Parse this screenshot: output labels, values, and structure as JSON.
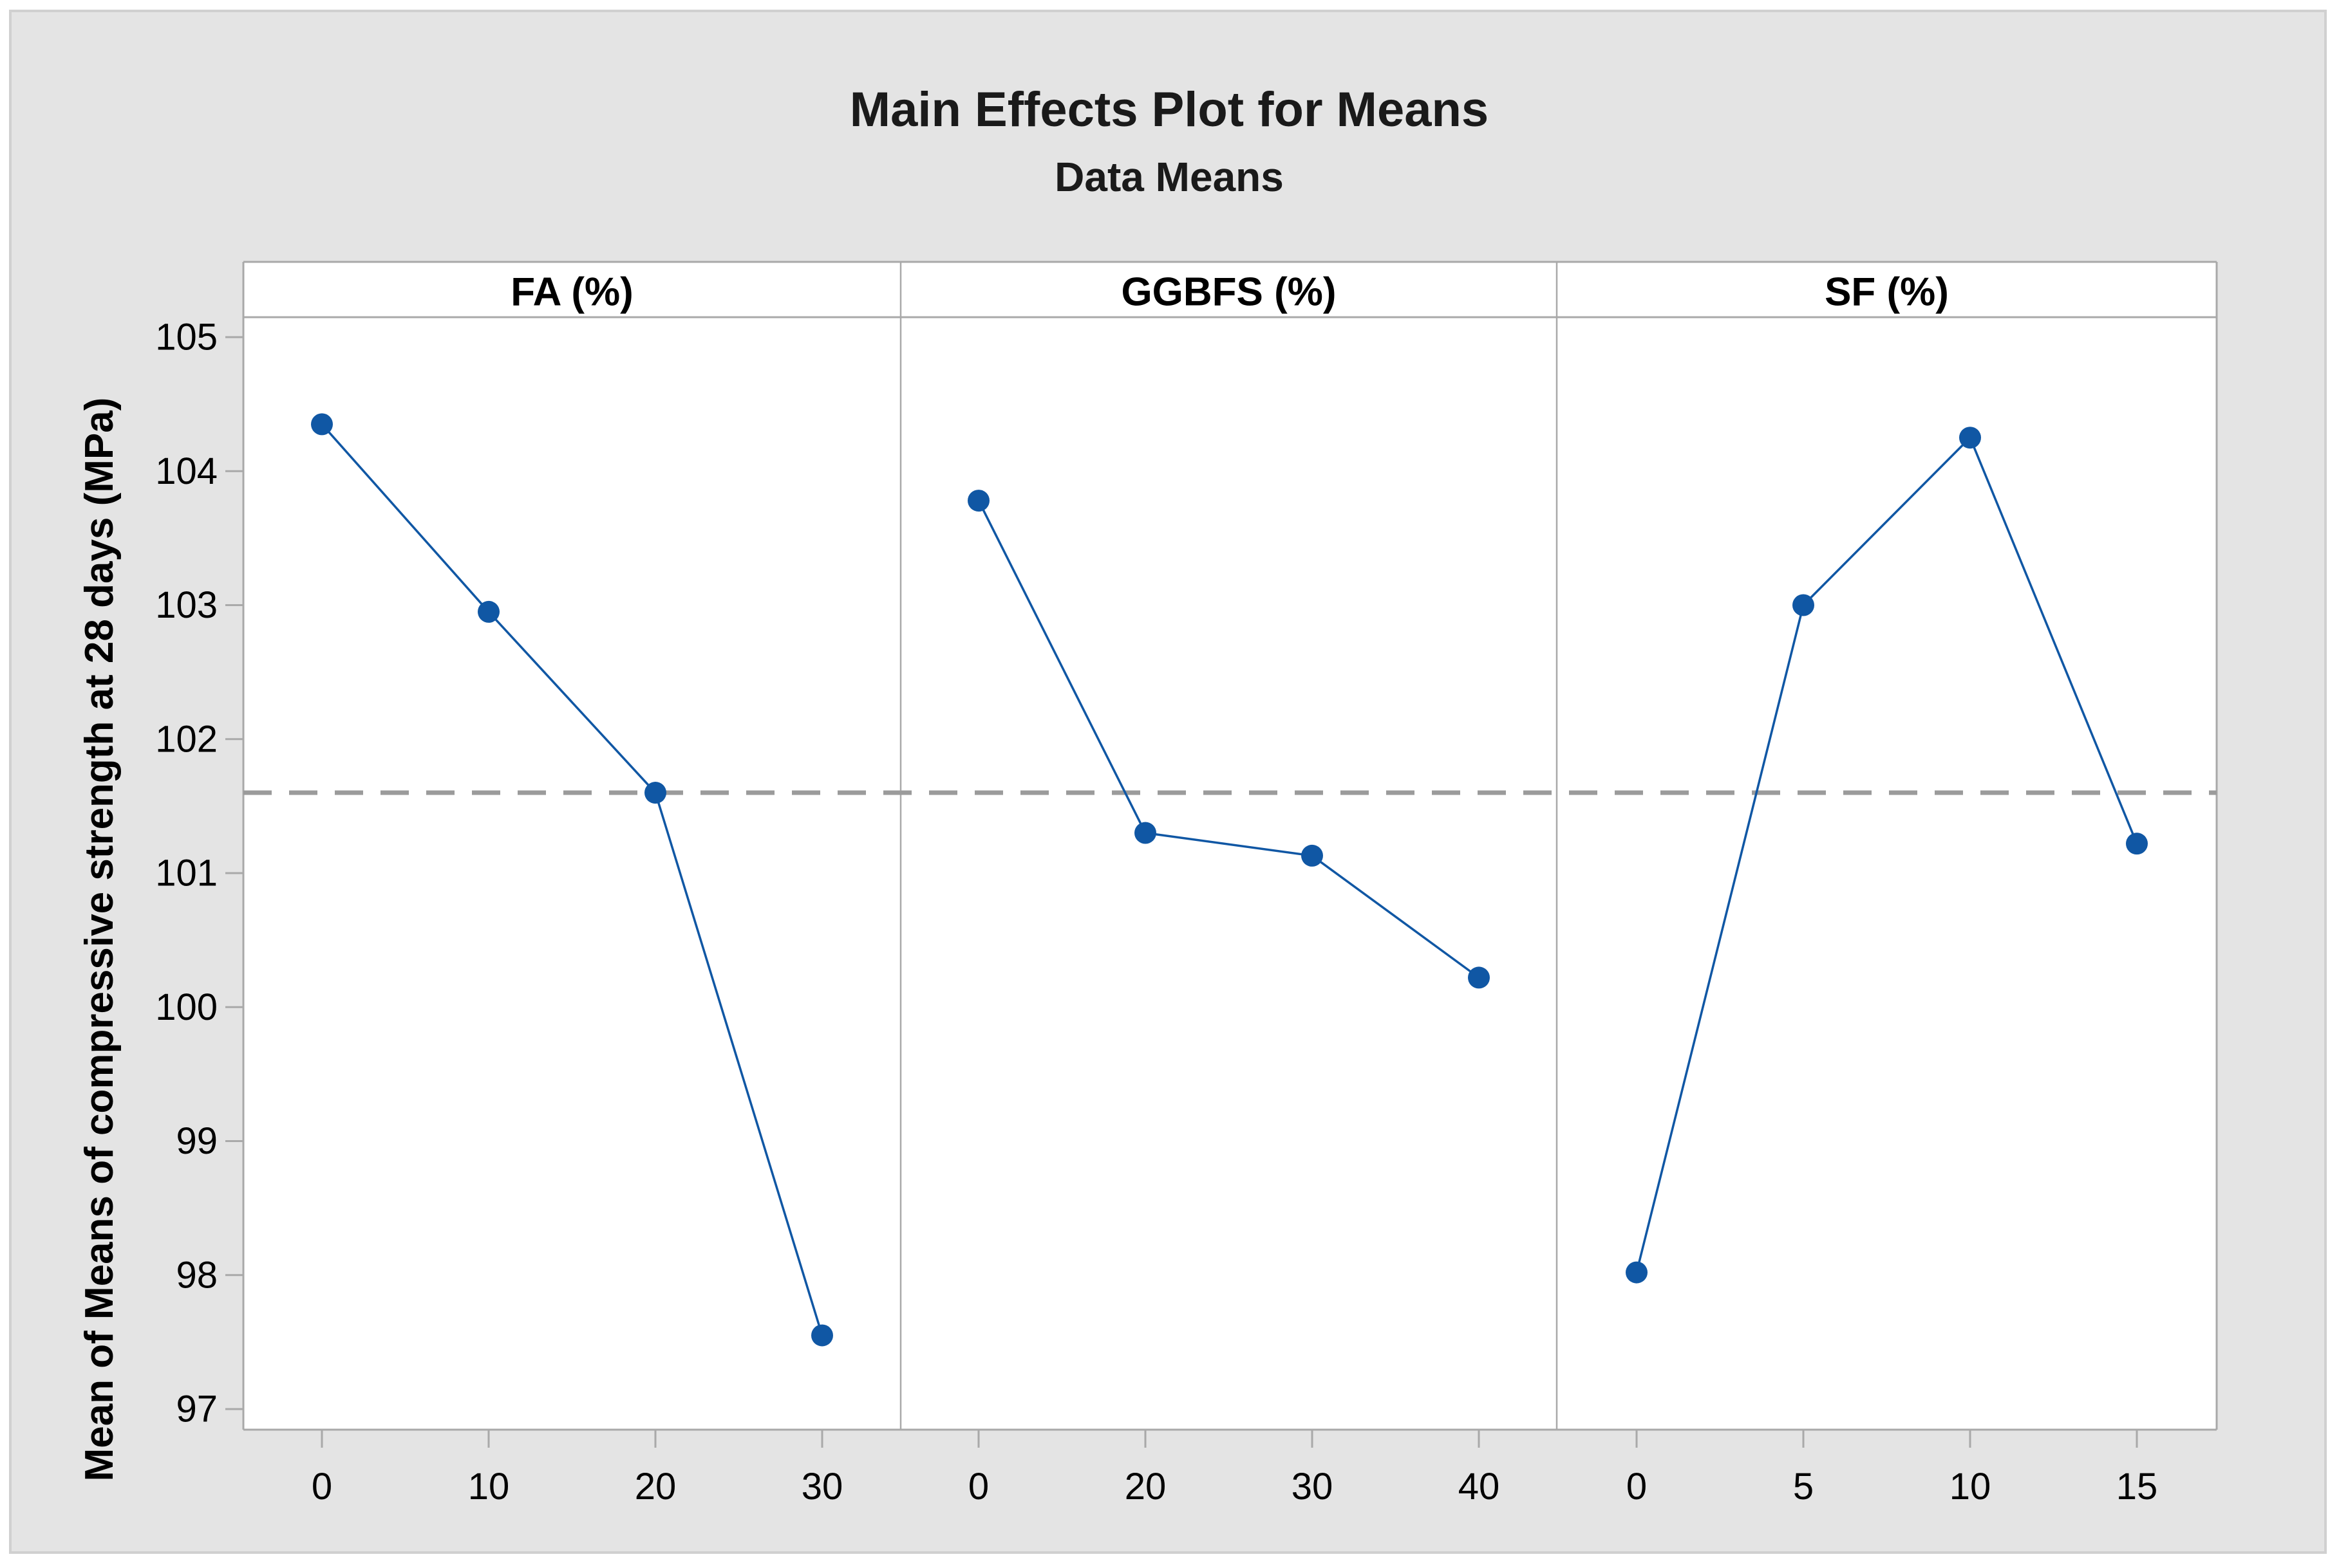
{
  "chart_data": {
    "type": "line",
    "title": "Main Effects Plot for Means",
    "subtitle": "Data Means",
    "ylabel": "Mean of Means of compressive strength at 28 days (MPa)",
    "ylim": [
      96.85,
      105.15
    ],
    "yticks": [
      97,
      98,
      99,
      100,
      101,
      102,
      103,
      104,
      105
    ],
    "mean_line": 101.6,
    "grid": false,
    "legend_position": "none",
    "panels": [
      {
        "label": "FA (%)",
        "categories": [
          "0",
          "10",
          "20",
          "30"
        ],
        "values": [
          104.35,
          102.95,
          101.6,
          97.55
        ]
      },
      {
        "label": "GGBFS (%)",
        "categories": [
          "0",
          "20",
          "30",
          "40"
        ],
        "values": [
          103.78,
          101.3,
          101.13,
          100.22
        ]
      },
      {
        "label": "SF (%)",
        "categories": [
          "0",
          "5",
          "10",
          "15"
        ],
        "values": [
          98.02,
          103.0,
          104.25,
          101.22
        ]
      }
    ],
    "colors": {
      "series": "#1057a4",
      "mean_line": "#9b9b9b",
      "frame": "#a9a9a9",
      "canvas_bg": "#e4e4e4",
      "plot_bg": "#ffffff",
      "text": "#000000"
    }
  }
}
